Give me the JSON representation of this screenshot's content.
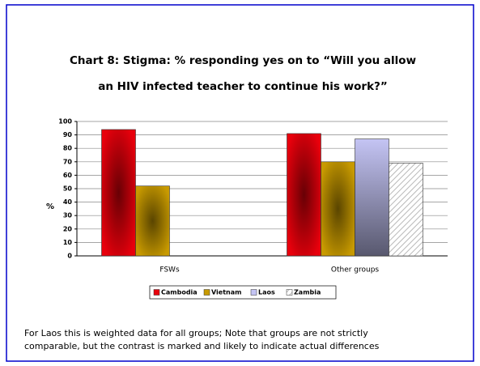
{
  "chart_data": {
    "type": "bar",
    "title": [
      "Chart 8: Stigma: % responding yes on to “Will you allow",
      "an HIV infected teacher to continue his work?”"
    ],
    "ylabel": "%",
    "categories": [
      "FSWs",
      "Other groups"
    ],
    "series": [
      {
        "name": "Cambodia",
        "color": "#e8000c",
        "values": [
          94,
          91
        ]
      },
      {
        "name": "Vietnam",
        "color": "#c89a00",
        "values": [
          52,
          70
        ]
      },
      {
        "name": "Laos",
        "color": "#c4c4f4",
        "values": [
          null,
          87
        ]
      },
      {
        "name": "Zambia",
        "color": "#b8b8b8",
        "values": [
          null,
          69
        ]
      }
    ],
    "ylim": [
      0,
      100
    ],
    "yticks": [
      0,
      10,
      20,
      30,
      40,
      50,
      60,
      70,
      80,
      90,
      100
    ],
    "grid": true,
    "legend": "bottom",
    "note": [
      "For Laos this is weighted data for all groups; Note that groups are not strictly",
      "comparable, but the contrast is marked and likely to indicate actual differences"
    ]
  }
}
